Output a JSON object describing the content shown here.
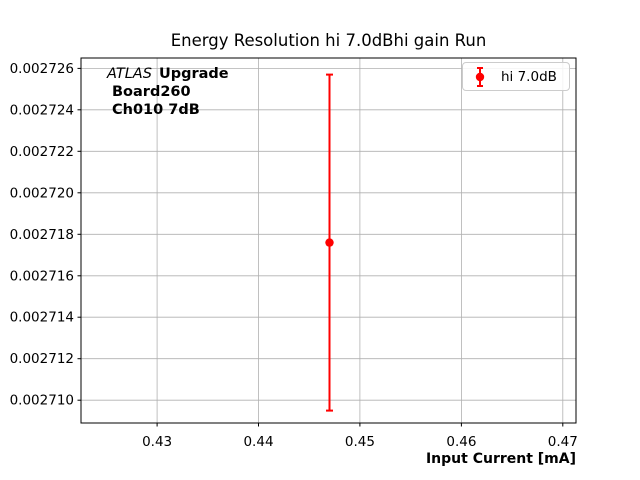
{
  "figure": {
    "title": "Energy Resolution hi 7.0dBhi gain Run",
    "xlabel": "Input Current [mA]"
  },
  "annotation": {
    "atlas": "ATLAS",
    "upgrade": "Upgrade",
    "board": "Board260",
    "channel": "Ch010 7dB"
  },
  "legend": {
    "entries": [
      "hi 7.0dB"
    ],
    "border_color": "#cccccc",
    "position": "upper right"
  },
  "chart_data": {
    "type": "scatter",
    "subtype": "errorbar",
    "title": "Energy Resolution hi 7.0dBhi gain Run",
    "xlabel": "Input Current [mA]",
    "ylabel": "",
    "xlim": [
      0.4225,
      0.4713
    ],
    "ylim": [
      0.0027089,
      0.0027265
    ],
    "x_ticks": [
      0.43,
      0.44,
      0.45,
      0.46,
      0.47
    ],
    "x_tick_labels": [
      "0.43",
      "0.44",
      "0.45",
      "0.46",
      "0.47"
    ],
    "y_ticks": [
      0.00271,
      0.002712,
      0.002714,
      0.002716,
      0.002718,
      0.00272,
      0.002722,
      0.002724,
      0.002726
    ],
    "y_tick_labels": [
      "0.002710",
      "0.002712",
      "0.002714",
      "0.002716",
      "0.002718",
      "0.002720",
      "0.002722",
      "0.002724",
      "0.002726"
    ],
    "grid": true,
    "grid_color": "#b0b0b0",
    "axis_color": "#000000",
    "background_color": "#ffffff",
    "legend_position": "upper right",
    "series": [
      {
        "name": "hi 7.0dB",
        "color": "#ff0000",
        "marker": "circle",
        "points": [
          {
            "x": 0.447,
            "y": 0.0027176,
            "yerr": 8.1e-06
          }
        ]
      }
    ]
  }
}
